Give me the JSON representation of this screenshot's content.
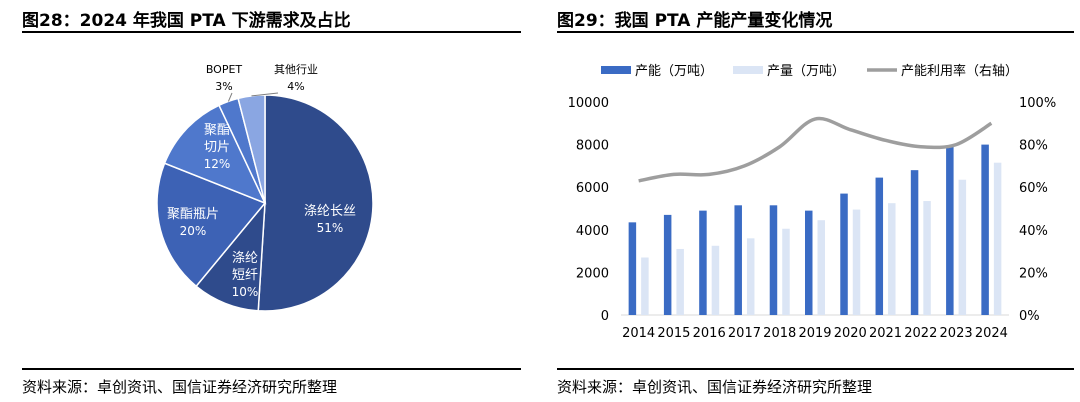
{
  "figures": [
    {
      "number_title": "图28：2024 年我国 PTA 下游需求及占比",
      "source": "资料来源：卓创资讯、国信证券经济研究所整理"
    },
    {
      "number_title": "图29：我国 PTA 产能产量变化情况",
      "source": "资料来源：卓创资讯、国信证券经济研究所整理"
    }
  ],
  "chart_data": [
    {
      "type": "pie",
      "title": "",
      "slices": [
        {
          "name": "涤纶长丝",
          "value": 51,
          "value_label": "51%",
          "color": "#2f4b8c"
        },
        {
          "name": "涤纶短纤",
          "value": 10,
          "value_label": "10%",
          "color": "#2f4b8c"
        },
        {
          "name": "聚酯瓶片",
          "value": 20,
          "value_label": "20%",
          "color": "#3d62b5"
        },
        {
          "name": "聚酯切片",
          "value": 12,
          "value_label": "12%",
          "color": "#4f78cc"
        },
        {
          "name": "BOPET",
          "value": 3,
          "value_label": "3%",
          "color": "#4f78cc"
        },
        {
          "name": "其他行业",
          "value": 4,
          "value_label": "4%",
          "color": "#8aa6e2"
        }
      ]
    },
    {
      "type": "bar",
      "title": "",
      "categories": [
        "2014",
        "2015",
        "2016",
        "2017",
        "2018",
        "2019",
        "2020",
        "2021",
        "2022",
        "2023",
        "2024"
      ],
      "series": [
        {
          "name": "产能（万吨）",
          "kind": "bar",
          "axis": "left",
          "color": "#3a6bc4",
          "values": [
            4350,
            4700,
            4900,
            5150,
            5150,
            4900,
            5700,
            6450,
            6800,
            7900,
            8000
          ]
        },
        {
          "name": "产量（万吨）",
          "kind": "bar",
          "axis": "left",
          "color": "#dbe5f5",
          "values": [
            2700,
            3100,
            3250,
            3600,
            4050,
            4450,
            4950,
            5250,
            5350,
            6350,
            7150
          ]
        },
        {
          "name": "产能利用率（右轴）",
          "kind": "line",
          "axis": "right",
          "color": "#9e9e9e",
          "values": [
            63,
            66,
            66,
            70,
            79,
            92,
            87,
            82,
            79,
            80,
            90
          ]
        }
      ],
      "ylim_left": [
        0,
        10000
      ],
      "yticks_left": [
        "0",
        "2000",
        "4000",
        "6000",
        "8000",
        "10000"
      ],
      "ylim_right": [
        0,
        100
      ],
      "yticks_right": [
        "0%",
        "20%",
        "40%",
        "60%",
        "80%",
        "100%"
      ],
      "legend": "top",
      "grid": false
    }
  ]
}
